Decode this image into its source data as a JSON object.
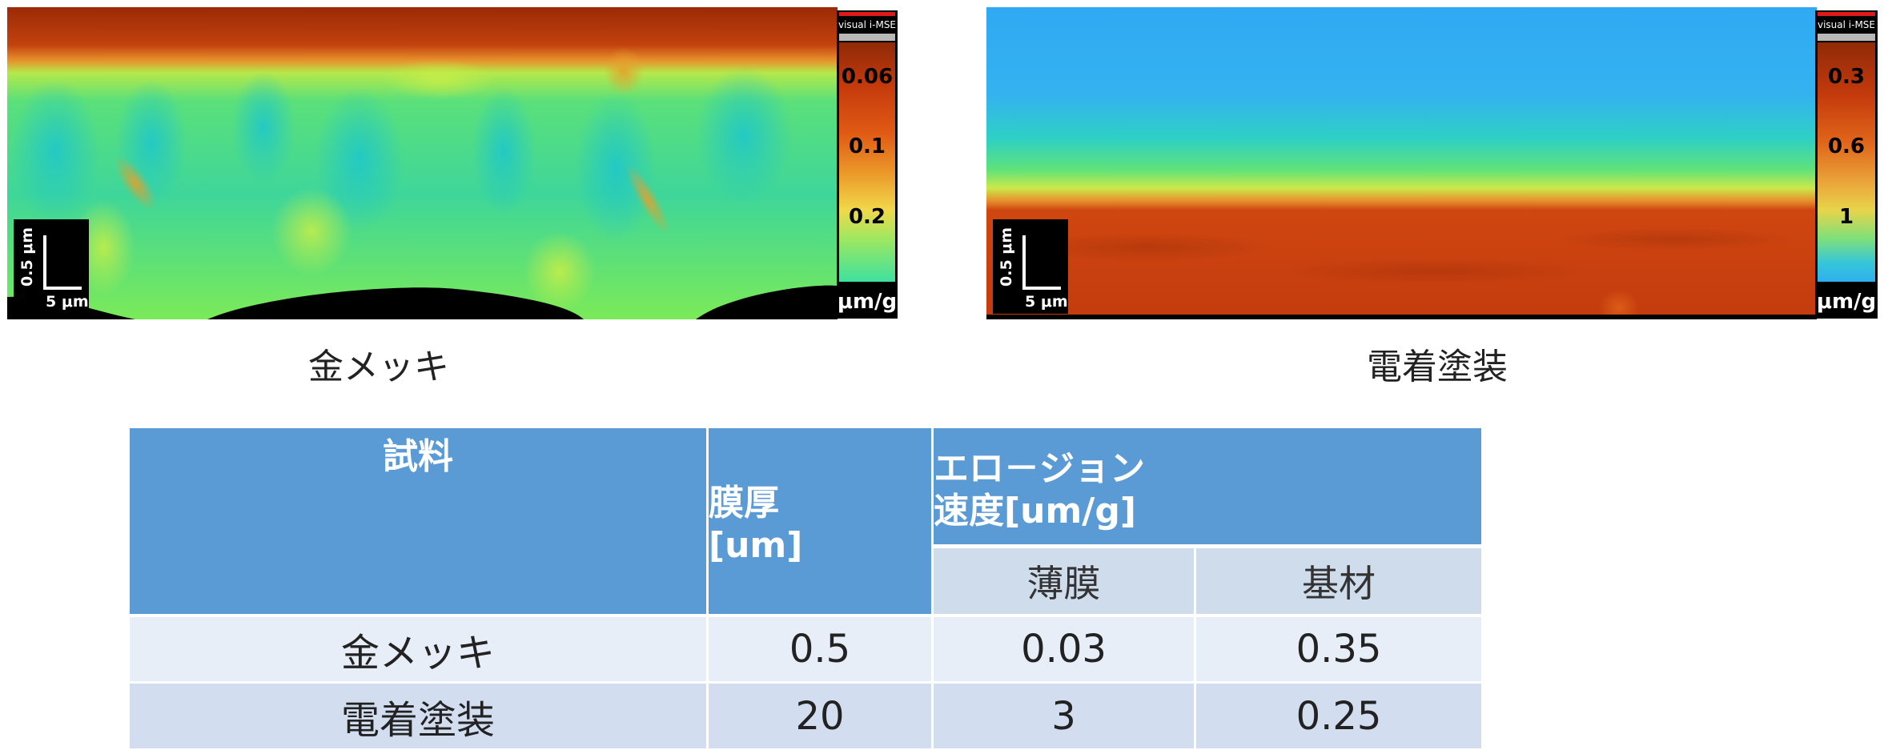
{
  "left_panel": {
    "caption": "金メッキ",
    "scale_bar": {
      "vertical": "0.5 μm",
      "horizontal": "5 μm"
    },
    "colorbar": {
      "brand": "visual i-MSE",
      "ticks": [
        "0.06",
        "0.1",
        "0.2"
      ],
      "unit": "μm/g"
    }
  },
  "right_panel": {
    "caption": "電着塗装",
    "scale_bar": {
      "vertical": "0.5 μm",
      "horizontal": "5 μm"
    },
    "colorbar": {
      "brand": "visual i-MSE",
      "ticks": [
        "0.3",
        "0.6",
        "1"
      ],
      "unit": "μm/g"
    }
  },
  "colors": {
    "header_blue": "#5b9bd5",
    "subheader": "#cfdcec",
    "row_light": "#e8eef7",
    "row_dark": "#d2deef",
    "map_red": "#c43a0c",
    "map_green": "#40e07a",
    "map_sky": "#33aef0"
  },
  "table": {
    "headers": {
      "sample": "試料",
      "thickness_line1": "膜厚",
      "thickness_line2": "[um]",
      "erosion_line1": "エロ－ジョン",
      "erosion_line2": "速度[um/g]",
      "film": "薄膜",
      "substrate": "基材"
    },
    "rows": [
      {
        "sample": "金メッキ",
        "thickness": "0.5",
        "film": "0.03",
        "substrate": "0.35"
      },
      {
        "sample": "電着塗装",
        "thickness": "20",
        "film": "3",
        "substrate": "0.25"
      }
    ]
  }
}
